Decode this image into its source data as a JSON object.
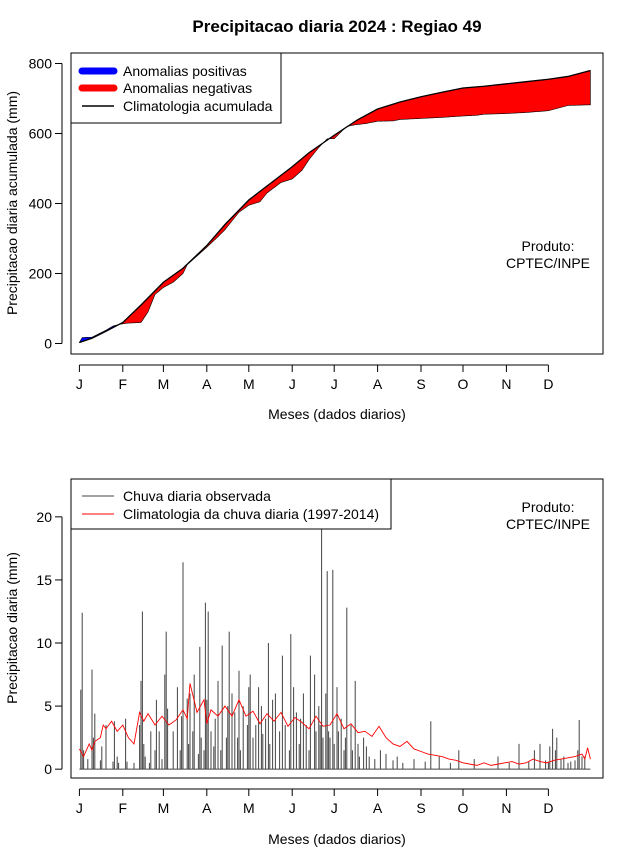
{
  "title": "Precipitacao diaria 2024 : Regiao 49",
  "charts": [
    {
      "ylabel": "Precipitacao diaria acumulada (mm)",
      "xlabel": "Meses (dados diarios)",
      "watermark": [
        "Produto:",
        "CPTEC/INPE"
      ],
      "legend": [
        "Anomalias positivas",
        "Anomalias negativas",
        "Climatologia acumulada"
      ]
    },
    {
      "ylabel": "Precipitacao diaria (mm)",
      "xlabel": "Meses (dados diarios)",
      "watermark": [
        "Produto:",
        "CPTEC/INPE"
      ],
      "legend": [
        "Chuva diaria observada",
        "Climatologia da chuva diaria (1997-2014)"
      ]
    }
  ],
  "chart_data": [
    {
      "type": "area",
      "x_unit": "day of year 2024",
      "xlim": [
        -5,
        375
      ],
      "ylim": [
        -30,
        830
      ],
      "x_ticks": [
        1,
        32,
        61,
        92,
        122,
        153,
        183,
        214,
        245,
        275,
        306,
        336
      ],
      "x_tick_labels": [
        "J",
        "F",
        "M",
        "A",
        "M",
        "J",
        "J",
        "A",
        "S",
        "O",
        "N",
        "D"
      ],
      "y_ticks": [
        0,
        200,
        400,
        600,
        800
      ],
      "legend_position": "top-left",
      "colors": {
        "positive": "#0000ff",
        "negative": "#ff0000",
        "climatology": "#000000"
      },
      "climatology_accumulated": {
        "x": [
          1,
          10,
          20,
          32,
          45,
          61,
          75,
          92,
          105,
          122,
          135,
          153,
          165,
          183,
          200,
          214,
          230,
          245,
          260,
          275,
          290,
          306,
          320,
          336,
          350,
          366
        ],
        "y": [
          3,
          15,
          35,
          60,
          110,
          175,
          215,
          280,
          340,
          410,
          450,
          505,
          545,
          595,
          640,
          670,
          690,
          705,
          718,
          730,
          735,
          742,
          748,
          755,
          763,
          780
        ]
      },
      "observed_accumulated": {
        "x": [
          1,
          3,
          10,
          20,
          25,
          30,
          35,
          45,
          50,
          55,
          61,
          68,
          75,
          78,
          85,
          92,
          100,
          105,
          115,
          122,
          130,
          135,
          145,
          153,
          160,
          165,
          172,
          178,
          183,
          188,
          192,
          198,
          205,
          214,
          225,
          230,
          245,
          255,
          260,
          275,
          285,
          290,
          306,
          320,
          336,
          350,
          366
        ],
        "y": [
          3,
          17,
          18,
          38,
          50,
          55,
          58,
          60,
          90,
          140,
          160,
          175,
          200,
          225,
          250,
          275,
          305,
          325,
          375,
          395,
          405,
          430,
          460,
          470,
          495,
          525,
          560,
          585,
          585,
          605,
          620,
          625,
          628,
          635,
          636,
          640,
          643,
          645,
          646,
          650,
          652,
          655,
          657,
          660,
          665,
          680,
          682
        ]
      }
    },
    {
      "type": "bar",
      "x_unit": "day of year 2024",
      "xlim": [
        -5,
        375
      ],
      "ylim": [
        -0.7,
        23
      ],
      "x_ticks": [
        1,
        32,
        61,
        92,
        122,
        153,
        183,
        214,
        245,
        275,
        306,
        336
      ],
      "x_tick_labels": [
        "J",
        "F",
        "M",
        "A",
        "M",
        "J",
        "J",
        "A",
        "S",
        "O",
        "N",
        "D"
      ],
      "y_ticks": [
        0,
        5,
        10,
        15,
        20
      ],
      "legend_position": "top-left",
      "colors": {
        "observed": "#444444",
        "climatology": "#ff0000"
      },
      "observed_daily": {
        "x": [
          2,
          3,
          4,
          7,
          10,
          11,
          12,
          16,
          17,
          20,
          25,
          26,
          28,
          29,
          34,
          35,
          40,
          44,
          45,
          46,
          47,
          48,
          51,
          52,
          55,
          56,
          58,
          60,
          62,
          63,
          64,
          68,
          71,
          73,
          74,
          75,
          78,
          79,
          80,
          82,
          83,
          86,
          87,
          88,
          90,
          91,
          92,
          93,
          95,
          97,
          98,
          100,
          102,
          103,
          106,
          107,
          108,
          110,
          112,
          114,
          115,
          116,
          118,
          121,
          122,
          123,
          125,
          127,
          129,
          131,
          132,
          134,
          136,
          137,
          139,
          141,
          144,
          146,
          148,
          151,
          152,
          154,
          156,
          158,
          159,
          161,
          163,
          165,
          166,
          169,
          170,
          172,
          173,
          174,
          175,
          177,
          178,
          179,
          180,
          182,
          183,
          185,
          186,
          188,
          190,
          191,
          192,
          195,
          196,
          198,
          200,
          201,
          204,
          206,
          208,
          212,
          216,
          220,
          225,
          228,
          232,
          240,
          248,
          252,
          258,
          266,
          272,
          283,
          300,
          308,
          315,
          322,
          326,
          330,
          334,
          336,
          337,
          339,
          341,
          342,
          345,
          347,
          350,
          352,
          355,
          357,
          358,
          360,
          362
        ],
        "y": [
          6.3,
          12.4,
          1.5,
          0.8,
          7.9,
          2.5,
          4.4,
          0.7,
          1.8,
          3.5,
          0.6,
          3.8,
          1.0,
          0.5,
          4.0,
          0.6,
          0.5,
          3.5,
          7.0,
          12.5,
          2.0,
          1.0,
          0.5,
          3.0,
          1.5,
          5.5,
          3.0,
          0.8,
          7.5,
          10.9,
          4.8,
          3.0,
          6.5,
          1.5,
          4.2,
          16.4,
          5.6,
          2.0,
          6.0,
          3.0,
          7.5,
          1.2,
          9.7,
          2.5,
          1.5,
          13.2,
          5.5,
          12.5,
          3.0,
          1.8,
          4.0,
          7.0,
          1.5,
          9.8,
          2.5,
          5.0,
          10.9,
          6.0,
          4.5,
          2.5,
          7.8,
          1.5,
          5.0,
          3.5,
          6.5,
          7.5,
          2.5,
          3.5,
          6.5,
          5.0,
          2.8,
          4.0,
          10.0,
          2.0,
          5.5,
          6.0,
          3.0,
          9.0,
          3.5,
          1.5,
          10.7,
          6.5,
          4.5,
          2.0,
          4.0,
          6.0,
          3.5,
          1.5,
          9.0,
          7.5,
          3.0,
          5.0,
          3.5,
          19.2,
          2.5,
          6.0,
          15.7,
          3.0,
          2.5,
          15.8,
          2.0,
          6.5,
          3.0,
          4.0,
          1.5,
          2.5,
          12.8,
          3.5,
          1.5,
          7.0,
          2.0,
          1.0,
          2.5,
          1.8,
          1.0,
          0.8,
          1.5,
          1.2,
          0.7,
          1.0,
          0.5,
          0.8,
          0.6,
          3.8,
          1.0,
          0.5,
          1.5,
          0.8,
          1.0,
          0.5,
          2.0,
          0.6,
          1.5,
          2.0,
          0.7,
          0.6,
          1.8,
          3.2,
          1.5,
          2.5,
          0.8,
          1.0,
          0.5,
          0.6,
          0.7,
          1.5,
          3.9,
          1.0,
          1.0
        ]
      },
      "climatology_daily": {
        "x": [
          1,
          4,
          8,
          10,
          12,
          16,
          18,
          20,
          24,
          28,
          32,
          36,
          40,
          44,
          47,
          50,
          55,
          60,
          65,
          70,
          75,
          78,
          80,
          85,
          90,
          92,
          95,
          100,
          105,
          110,
          115,
          120,
          125,
          130,
          135,
          140,
          145,
          150,
          155,
          160,
          165,
          170,
          175,
          180,
          185,
          190,
          195,
          200,
          205,
          210,
          215,
          220,
          225,
          230,
          235,
          240,
          245,
          250,
          255,
          260,
          265,
          270,
          275,
          280,
          285,
          290,
          295,
          300,
          305,
          310,
          315,
          320,
          325,
          330,
          335,
          340,
          345,
          350,
          355,
          360,
          362,
          364,
          366
        ],
        "y": [
          1.6,
          1.0,
          2.0,
          1.5,
          2.2,
          2.5,
          3.5,
          3.2,
          3.8,
          3.0,
          3.5,
          2.5,
          2.0,
          4.5,
          3.8,
          4.4,
          3.5,
          4.2,
          3.5,
          3.9,
          4.7,
          4.0,
          6.8,
          4.5,
          5.5,
          3.6,
          4.7,
          4.2,
          5.0,
          4.2,
          5.5,
          4.2,
          4.6,
          3.6,
          4.4,
          3.8,
          4.5,
          3.4,
          4.1,
          3.7,
          3.2,
          4.2,
          3.4,
          3.5,
          4.4,
          3.2,
          3.6,
          2.9,
          3.0,
          2.6,
          3.4,
          2.5,
          2.0,
          1.8,
          2.2,
          1.6,
          1.4,
          1.2,
          1.1,
          1.0,
          0.8,
          0.7,
          0.5,
          0.4,
          0.3,
          0.5,
          0.3,
          0.4,
          0.5,
          0.6,
          0.4,
          0.5,
          0.8,
          0.6,
          0.5,
          0.7,
          0.8,
          0.9,
          1.0,
          1.2,
          0.8,
          1.7,
          0.8
        ]
      }
    }
  ]
}
